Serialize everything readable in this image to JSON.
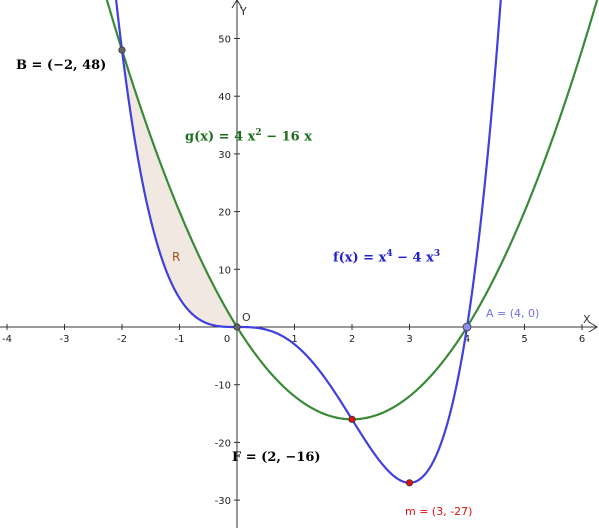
{
  "colors": {
    "f_curve": "#4040dd",
    "g_curve": "#3a8a3a",
    "region_fill": "#f2e8e2",
    "region_label": "#a0521a",
    "point_A": "#8e8eee",
    "point_red": "#dd1111",
    "point_gray": "#666666",
    "axis": "#333333"
  },
  "axes": {
    "x_name": "X",
    "y_name": "Y",
    "origin_label": "O",
    "x_ticks": [
      "-4",
      "-3",
      "-2",
      "-1",
      "0",
      "1",
      "2",
      "3",
      "4",
      "5",
      "6"
    ],
    "y_ticks": [
      "-30",
      "-20",
      "-10",
      "10",
      "20",
      "30",
      "40",
      "50"
    ]
  },
  "labels": {
    "B": "B = (−2, 48)",
    "g_left": "g(x) = 4 x",
    "g_exp": "2",
    "g_right": " − 16 x",
    "f_left": "f(x) = x",
    "f_exp1": "4",
    "f_mid": " − 4 x",
    "f_exp2": "3",
    "R": "R",
    "A": "A = (4, 0)",
    "F": "F = (2, −16)",
    "m": "m = (3, -27)"
  },
  "chart_data": {
    "type": "line",
    "x_range": [
      -4.2,
      6.3
    ],
    "y_range": [
      -34,
      57
    ],
    "grid": false,
    "series": [
      {
        "name": "f(x) = x^4 − 4x^3",
        "expression": "x^4 - 4*x^3"
      },
      {
        "name": "g(x) = 4x^2 − 16x",
        "expression": "4*x^2 - 16*x"
      }
    ],
    "shaded_region": {
      "name": "R",
      "between": [
        "f",
        "g"
      ],
      "x_from": -2,
      "x_to": 0
    },
    "points": [
      {
        "name": "B",
        "x": -2,
        "y": 48
      },
      {
        "name": "O",
        "x": 0,
        "y": 0
      },
      {
        "name": "A",
        "x": 4,
        "y": 0
      },
      {
        "name": "F",
        "x": 2,
        "y": -16
      },
      {
        "name": "m",
        "x": 3,
        "y": -27
      }
    ]
  }
}
